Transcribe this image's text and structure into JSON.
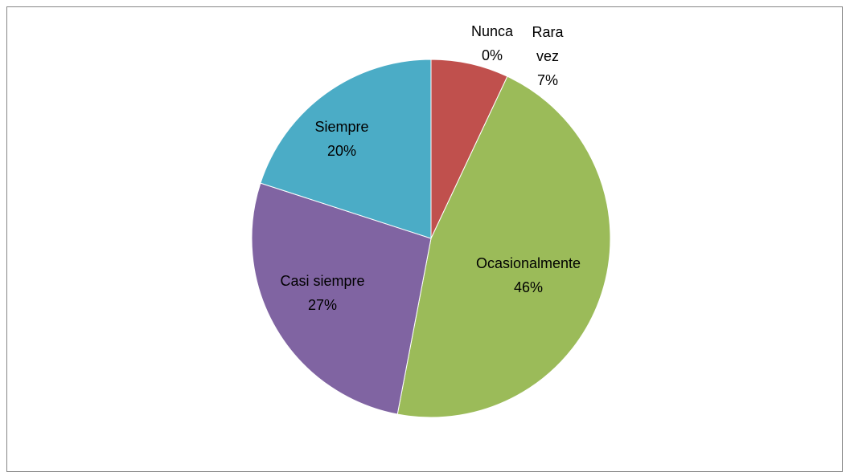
{
  "chart_data": {
    "type": "pie",
    "categories": [
      "Nunca",
      "Rara vez",
      "Ocasionalmente",
      "Casi siempre",
      "Siempre"
    ],
    "values": [
      0,
      7,
      46,
      27,
      20
    ],
    "value_labels": [
      "0%",
      "7%",
      "46%",
      "27%",
      "20%"
    ],
    "colors": [
      "#4f81bd",
      "#c0504d",
      "#9bbb59",
      "#8064a2",
      "#4bacc6"
    ]
  }
}
